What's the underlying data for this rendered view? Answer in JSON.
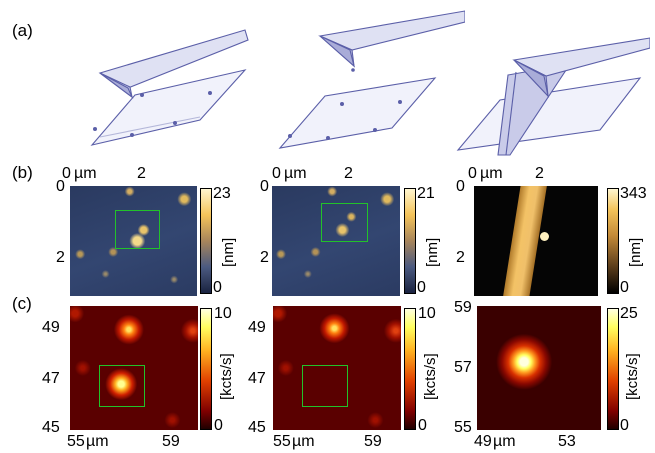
{
  "figure": {
    "panel_labels": {
      "a": "(a)",
      "b": "(b)",
      "c": "(c)"
    },
    "row_b": [
      {
        "x_ticks": [
          "0",
          "µm",
          "2"
        ],
        "y_ticks": [
          "0",
          "2"
        ],
        "cbar_max": "23",
        "cbar_min": "0",
        "cbar_unit": "[nm]"
      },
      {
        "x_ticks": [
          "0",
          "µm",
          "2"
        ],
        "y_ticks": [
          "0",
          "2"
        ],
        "cbar_max": "21",
        "cbar_min": "0",
        "cbar_unit": "[nm]"
      },
      {
        "x_ticks": [
          "0",
          "µm",
          "2"
        ],
        "y_ticks": [
          "0",
          "2"
        ],
        "cbar_max": "343",
        "cbar_min": "0",
        "cbar_unit": "[nm]"
      }
    ],
    "row_c": [
      {
        "x_ticks": [
          "55",
          "µm",
          "59"
        ],
        "y_ticks": [
          "49",
          "47",
          "45"
        ],
        "cbar_max": "10",
        "cbar_min": "0",
        "cbar_unit": "[kcts/s]"
      },
      {
        "x_ticks": [
          "55",
          "µm",
          "59"
        ],
        "y_ticks": [
          "49",
          "47",
          "45"
        ],
        "cbar_max": "10",
        "cbar_min": "0",
        "cbar_unit": "[kcts/s]"
      },
      {
        "x_ticks": [
          "49",
          "µm",
          "53"
        ],
        "y_ticks": [
          "59",
          "57",
          "55"
        ],
        "cbar_max": "25",
        "cbar_min": "0",
        "cbar_unit": "[kcts/s]"
      }
    ]
  },
  "colors": {
    "afm_dark": "#2b3a5e",
    "afm_bright": "#f4c35a",
    "fluor_dark": "#5a0000",
    "fluor_bright": "#ffff80",
    "roi_box": "#22c22a",
    "sketch_ink": "#5b5fa8"
  }
}
